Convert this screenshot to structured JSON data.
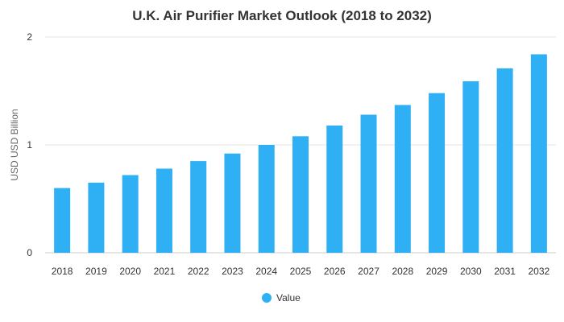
{
  "chart_data": {
    "type": "bar",
    "title": "U.K. Air Purifier Market Outlook (2018 to 2032)",
    "xlabel": "",
    "ylabel": "USD USD Billion",
    "ylim": [
      0,
      2
    ],
    "yticks": [
      "0",
      "1",
      "2"
    ],
    "grid": true,
    "legend_position": "bottom",
    "categories": [
      "2018",
      "2019",
      "2020",
      "2021",
      "2022",
      "2023",
      "2024",
      "2025",
      "2026",
      "2027",
      "2028",
      "2029",
      "2030",
      "2031",
      "2032"
    ],
    "series": [
      {
        "name": "Value",
        "color": "#2fb0f5",
        "values": [
          0.6,
          0.65,
          0.72,
          0.78,
          0.85,
          0.92,
          1.0,
          1.08,
          1.18,
          1.28,
          1.37,
          1.48,
          1.59,
          1.71,
          1.84
        ]
      }
    ]
  }
}
